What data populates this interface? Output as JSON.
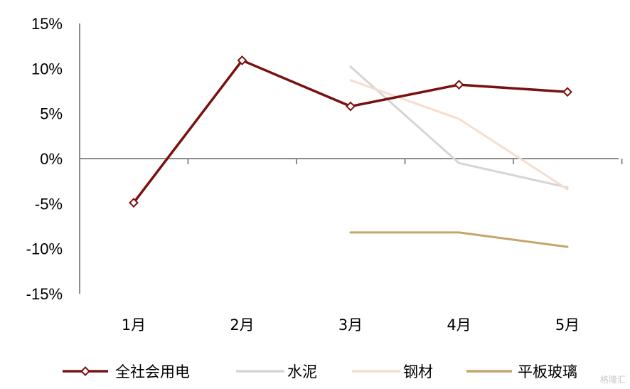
{
  "chart_data": {
    "type": "line",
    "categories": [
      "1月",
      "2月",
      "3月",
      "4月",
      "5月"
    ],
    "ylim": [
      -15,
      15
    ],
    "yticks": [
      15,
      10,
      5,
      0,
      -5,
      -10,
      -15
    ],
    "ytick_labels": [
      "15%",
      "10%",
      "5%",
      "0%",
      "-5%",
      "-10%",
      "-15%"
    ],
    "grid": false,
    "legend_position": "bottom",
    "series": [
      {
        "name": "全社会用电",
        "color": "#7a1010",
        "marker": "diamond-open",
        "values": [
          -4.9,
          10.9,
          5.8,
          8.2,
          7.4
        ]
      },
      {
        "name": "水泥",
        "color": "#d5d5d5",
        "marker": "none",
        "values": [
          null,
          null,
          10.2,
          -0.5,
          -3.2
        ]
      },
      {
        "name": "钢材",
        "color": "#f6ddcf",
        "marker": "none",
        "values": [
          null,
          null,
          8.7,
          4.4,
          -3.4
        ]
      },
      {
        "name": "平板玻璃",
        "color": "#c4a56a",
        "marker": "none",
        "values": [
          null,
          null,
          -8.2,
          -8.2,
          -9.8
        ]
      }
    ]
  },
  "watermark": "格隆汇"
}
